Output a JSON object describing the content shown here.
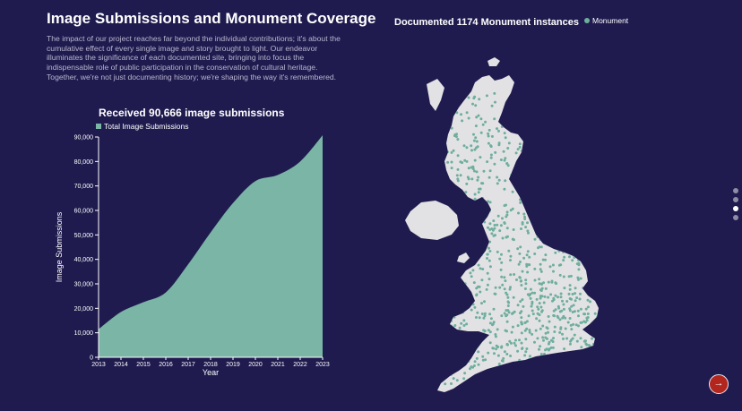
{
  "page": {
    "title": "Image Submissions and Monument Coverage",
    "intro": "The impact of our project reaches far beyond the individual contributions; it's about the cumulative effect of every single image and story brought to light. Our endeavor illuminates the significance of each documented site, bringing into focus the indispensable role of public participation in the conservation of cultural heritage. Together, we're not just documenting history; we're shaping the way it's remembered."
  },
  "colors": {
    "background": "#1f1b4f",
    "area_fill": "#7ab5a6",
    "land": "#e2e2e4",
    "monument_dot": "#6fae9d",
    "button": "#b3261e"
  },
  "chart_data": [
    {
      "type": "area",
      "title": "Received 90,666 image submissions",
      "legend": "Total Image Submissions",
      "legend_position": "top-left",
      "xlabel": "Year",
      "ylabel": "Image Submissions",
      "x": [
        "2013",
        "2014",
        "2015",
        "2016",
        "2017",
        "2018",
        "2019",
        "2020",
        "2021",
        "2022",
        "2023"
      ],
      "y_ticks": [
        "0",
        "10,000",
        "20,000",
        "30,000",
        "40,000",
        "50,000",
        "60,000",
        "70,000",
        "80,000",
        "90,000"
      ],
      "ylim": [
        0,
        90000
      ],
      "grid": false,
      "series": [
        {
          "name": "Total Image Submissions",
          "values": [
            11500,
            18500,
            22500,
            26500,
            38000,
            51000,
            63000,
            72000,
            74500,
            80000,
            90666
          ]
        }
      ]
    },
    {
      "type": "scatter",
      "title": "Documented 1174 Monument instances",
      "legend": "Monument",
      "legend_position": "top-right",
      "count": 1174
    }
  ],
  "pager": {
    "pages": 4,
    "active": 3
  },
  "next_button": {
    "icon": "arrow-right-icon",
    "glyph": "→"
  }
}
